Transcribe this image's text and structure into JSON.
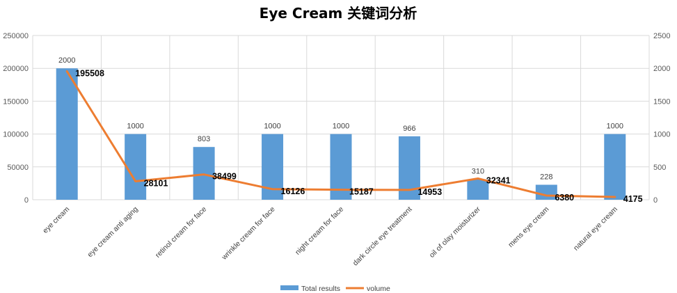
{
  "chart_data": {
    "type": "bar+line",
    "title": "Eye Cream 关键词分析",
    "categories": [
      "eye cream",
      "eye cream anti aging",
      "retinol cream for face",
      "wrinkle cream for face",
      "night cream for face",
      "dark circle eye treatment",
      "oil of olay moisturizer",
      "mens eye cream",
      "natural eye cream"
    ],
    "series": [
      {
        "name": "Total results",
        "type": "bar",
        "axis": "right",
        "values": [
          2000,
          1000,
          803,
          1000,
          1000,
          966,
          310,
          228,
          1000
        ],
        "color": "#5B9BD5"
      },
      {
        "name": "volume",
        "type": "line",
        "axis": "left",
        "values": [
          195508,
          28101,
          38499,
          16126,
          15187,
          14953,
          32341,
          6380,
          4175
        ],
        "color": "#ED7D31"
      }
    ],
    "y_left": {
      "min": 0,
      "max": 250000,
      "ticks": [
        0,
        50000,
        100000,
        150000,
        200000,
        250000
      ]
    },
    "y_right": {
      "min": 0,
      "max": 2500,
      "ticks": [
        0,
        500,
        1000,
        1500,
        2000,
        2500
      ]
    },
    "grid": true,
    "legend_position": "bottom"
  }
}
